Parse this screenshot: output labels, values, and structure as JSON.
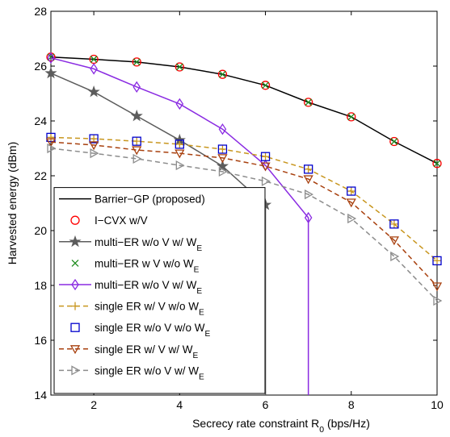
{
  "chart_data": {
    "type": "line",
    "xlabel": "Secrecy rate constraint R_{0} (bps/Hz)",
    "ylabel": "Harvested energy (dBm)",
    "x": [
      1,
      2,
      3,
      4,
      5,
      6,
      7,
      8,
      9,
      10
    ],
    "xlim": [
      1,
      10
    ],
    "xticks": [
      2,
      4,
      6,
      8,
      10
    ],
    "ylim": [
      14,
      28
    ],
    "yticks": [
      14,
      16,
      18,
      20,
      22,
      24,
      26,
      28
    ],
    "legend": "lower-left",
    "series": [
      {
        "name": "Barrier−GP (proposed)",
        "color": "#000000",
        "line": "solid",
        "marker": "none",
        "values": [
          26.33,
          26.25,
          26.15,
          25.97,
          25.7,
          25.3,
          24.68,
          24.15,
          23.25,
          22.45
        ]
      },
      {
        "name": "I−CVX w/V",
        "color": "#ff0000",
        "line": "none",
        "marker": "circle",
        "values": [
          26.33,
          26.25,
          26.15,
          25.97,
          25.7,
          25.3,
          24.68,
          24.15,
          23.25,
          22.45
        ]
      },
      {
        "name": "multi−ER w/o V w/ W_{E}",
        "color": "#5c5c5c",
        "line": "solid",
        "marker": "star",
        "values": [
          25.74,
          25.06,
          24.18,
          23.3,
          22.35,
          20.94,
          null,
          null,
          null,
          null
        ]
      },
      {
        "name": "multi−ER w V w/o W_{E}",
        "color": "#1e8c1e",
        "line": "none",
        "marker": "x",
        "values": [
          26.33,
          26.25,
          26.15,
          25.97,
          25.7,
          25.3,
          24.68,
          24.15,
          23.25,
          22.45
        ]
      },
      {
        "name": "multi−ER w/o V w/ W_{E}",
        "color": "#8a2be2",
        "line": "solid",
        "marker": "diamond",
        "values": [
          26.3,
          25.9,
          25.24,
          24.62,
          23.7,
          22.38,
          20.47,
          null,
          null,
          null
        ]
      },
      {
        "name": "single ER w/ V w/o W_{E}",
        "color": "#c8961e",
        "line": "dashed",
        "marker": "plus",
        "values": [
          23.4,
          23.35,
          23.26,
          23.15,
          22.97,
          22.7,
          22.24,
          21.44,
          20.24,
          18.9
        ]
      },
      {
        "name": "single ER w/o V w/o W_{E}",
        "color": "#0000cc",
        "line": "none",
        "marker": "square",
        "values": [
          23.4,
          23.35,
          23.26,
          23.15,
          22.97,
          22.7,
          22.24,
          21.44,
          20.24,
          18.9
        ]
      },
      {
        "name": "single ER w/ V w/ W_{E}",
        "color": "#a8400e",
        "line": "dashed",
        "marker": "triangle-down",
        "values": [
          23.23,
          23.12,
          22.94,
          22.82,
          22.65,
          22.35,
          21.88,
          21.03,
          19.65,
          17.97
        ]
      },
      {
        "name": "single ER w/o V w/ W_{E}",
        "color": "#8c8c8c",
        "line": "dashed",
        "marker": "triangle-right",
        "values": [
          23.0,
          22.82,
          22.62,
          22.38,
          22.15,
          21.8,
          21.32,
          20.44,
          19.06,
          17.44
        ]
      }
    ]
  }
}
